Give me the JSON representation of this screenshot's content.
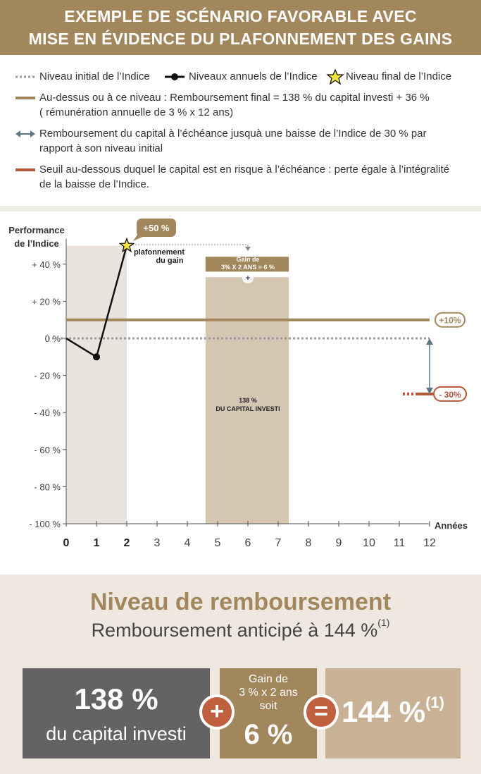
{
  "header": {
    "line1": "EXEMPLE DE SCÉNARIO FAVORABLE AVEC",
    "line2": "MISE EN ÉVIDENCE DU PLAFONNEMENT DES GAINS"
  },
  "legend": {
    "initial": "Niveau initial de l’Indice",
    "annual": "Niveaux annuels de l’Indice",
    "final": "Niveau final de l’Indice",
    "barrier_line1": "Au-dessus ou à ce niveau : Remboursement final = 138 % du capital investi + 36 %",
    "barrier_line2": "( rémunération annuelle de 3 % x 12 ans)",
    "protection_line1": "Remboursement du capital à l’échéance jusquà une baisse de l’Indice de 30 % par",
    "protection_line2": "rapport à son niveau initial",
    "risk_line1": "Seuil au-dessous duquel le capital est en risque à l’échéance : perte égale à l’intégralité",
    "risk_line2": "de la baisse de l’Indice."
  },
  "chart_data": {
    "type": "line",
    "ylabel_line1": "Performance",
    "ylabel_line2": "de l’Indice",
    "xlabel": "Années",
    "ylim": [
      -100,
      50
    ],
    "xlim": [
      0,
      12
    ],
    "yticks": [
      {
        "v": 40,
        "label": "+ 40 %"
      },
      {
        "v": 20,
        "label": "+ 20 %"
      },
      {
        "v": 0,
        "label": "0 %"
      },
      {
        "v": -20,
        "label": "- 20 %"
      },
      {
        "v": -40,
        "label": "- 40 %"
      },
      {
        "v": -60,
        "label": "- 60 %"
      },
      {
        "v": -80,
        "label": "- 80 %"
      },
      {
        "v": -100,
        "label": "- 100 %"
      }
    ],
    "xticks": [
      "0",
      "1",
      "2",
      "3",
      "4",
      "5",
      "6",
      "7",
      "8",
      "9",
      "10",
      "11",
      "12"
    ],
    "series": [
      {
        "x": [
          0,
          1,
          2
        ],
        "y": [
          0,
          -10,
          50
        ]
      }
    ],
    "final_label": "+50 %",
    "cap_label_line1": "plafonnement",
    "cap_label_line2": "du gain",
    "gain_label_line1": "Gain de",
    "gain_label_line2": "3% X 2 ANS = 6 %",
    "capital_label_line1": "138 %",
    "capital_label_line2": "DU CAPITAL INVESTI",
    "barrier_level": 10,
    "barrier_label": "+10%",
    "risk_level": -30,
    "risk_label": "- 30%",
    "plus_sign": "+",
    "colors": {
      "barrier": "#a3875c",
      "risk": "#b5553a",
      "protection_arrow": "#5a7686",
      "period": "#e9e4de",
      "capital": "#d5c6b2",
      "gain": "#a3875c",
      "star": "#f2e33a"
    }
  },
  "bottom": {
    "title": "Niveau de remboursement",
    "subtitle": "Remboursement anticipé à 144 %",
    "subtitle_note": "(1)",
    "box1_big": "138 %",
    "box1_small": "du capital investi",
    "plus": "+",
    "box2_line1": "Gain de",
    "box2_line2": "3 % x 2 ans",
    "box2_line3": "soit",
    "box2_big": "6 %",
    "equals": "=",
    "box3_big": "144 %",
    "box3_note": "(1)"
  }
}
